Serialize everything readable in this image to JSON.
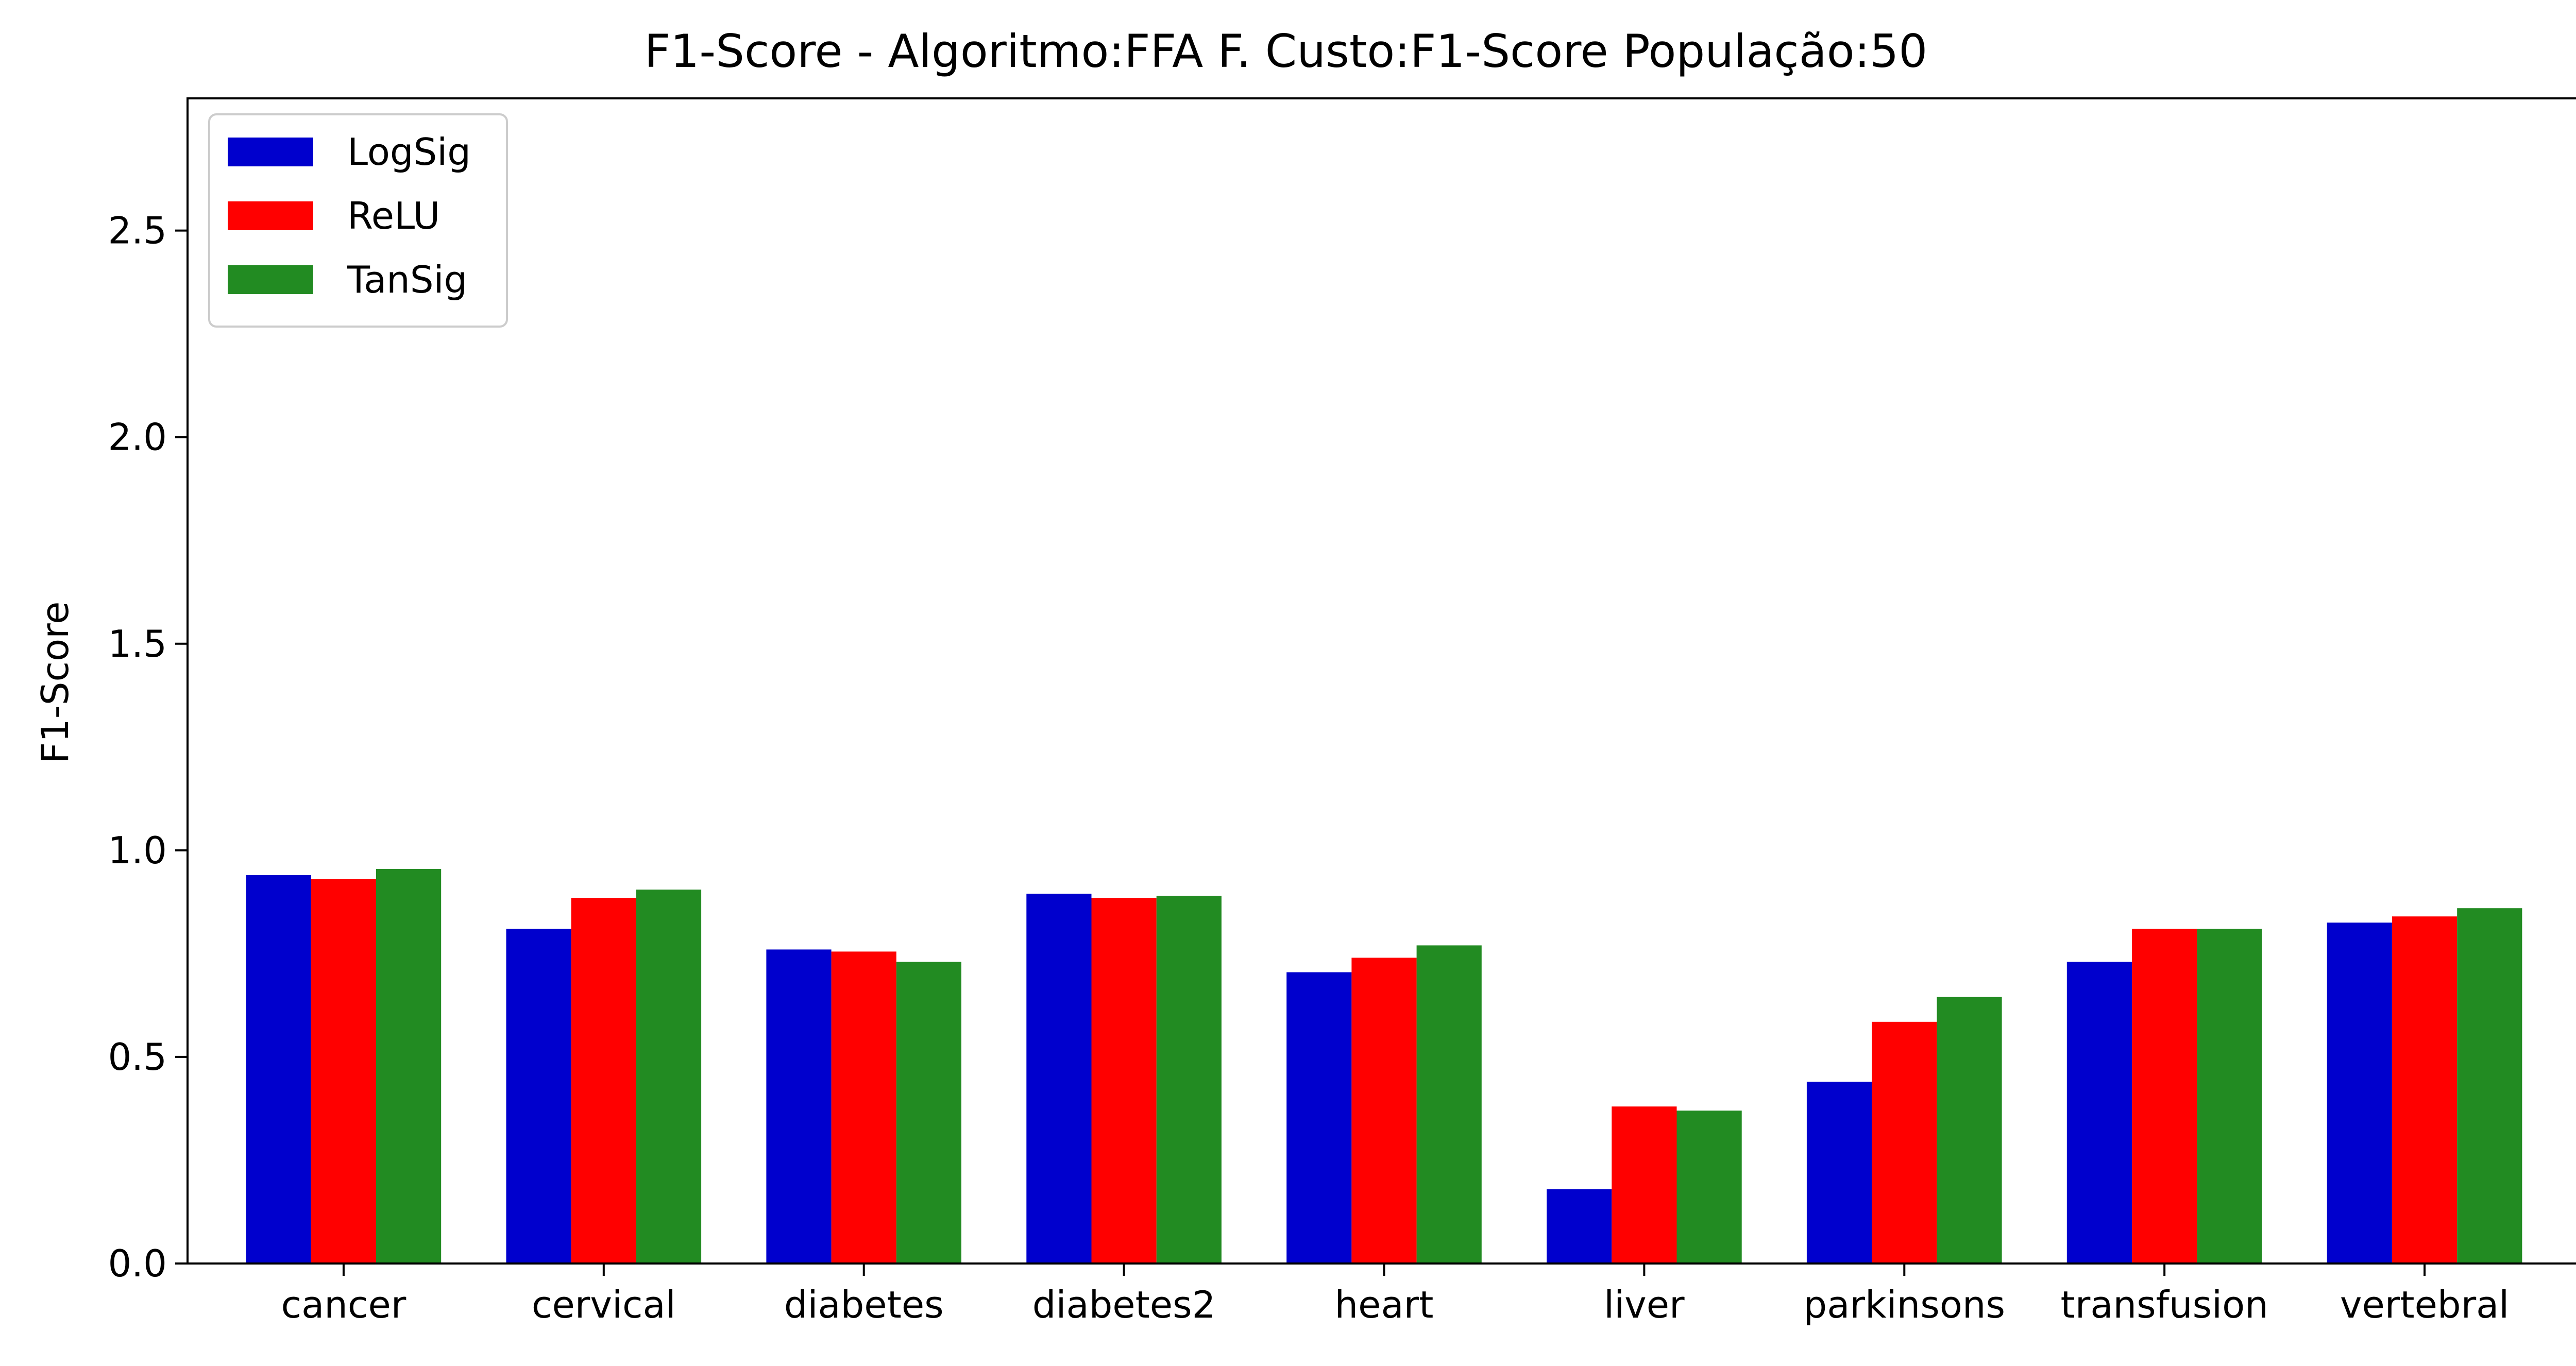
{
  "chart_data": {
    "type": "bar",
    "title": "F1-Score - Algoritmo:FFA F. Custo:F1-Score População:50",
    "xlabel": "",
    "ylabel": "F1-Score",
    "categories": [
      "cancer",
      "cervical",
      "diabetes",
      "diabetes2",
      "heart",
      "liver",
      "parkinsons",
      "transfusion",
      "vertebral"
    ],
    "series": [
      {
        "name": "LogSig",
        "color": "#0000cd",
        "values": [
          0.94,
          0.81,
          0.76,
          0.895,
          0.705,
          0.18,
          0.44,
          0.73,
          0.825
        ]
      },
      {
        "name": "ReLU",
        "color": "#ff0000",
        "values": [
          0.93,
          0.885,
          0.755,
          0.885,
          0.74,
          0.38,
          0.585,
          0.81,
          0.84
        ]
      },
      {
        "name": "TanSig",
        "color": "#228b22",
        "values": [
          0.955,
          0.905,
          0.73,
          0.89,
          0.77,
          0.37,
          0.645,
          0.81,
          0.86
        ]
      }
    ],
    "ylim": [
      0,
      2.82
    ],
    "yticks": [
      "0.0",
      "0.5",
      "1.0",
      "1.5",
      "2.0",
      "2.5"
    ],
    "grid": false,
    "legend": "top-left"
  }
}
